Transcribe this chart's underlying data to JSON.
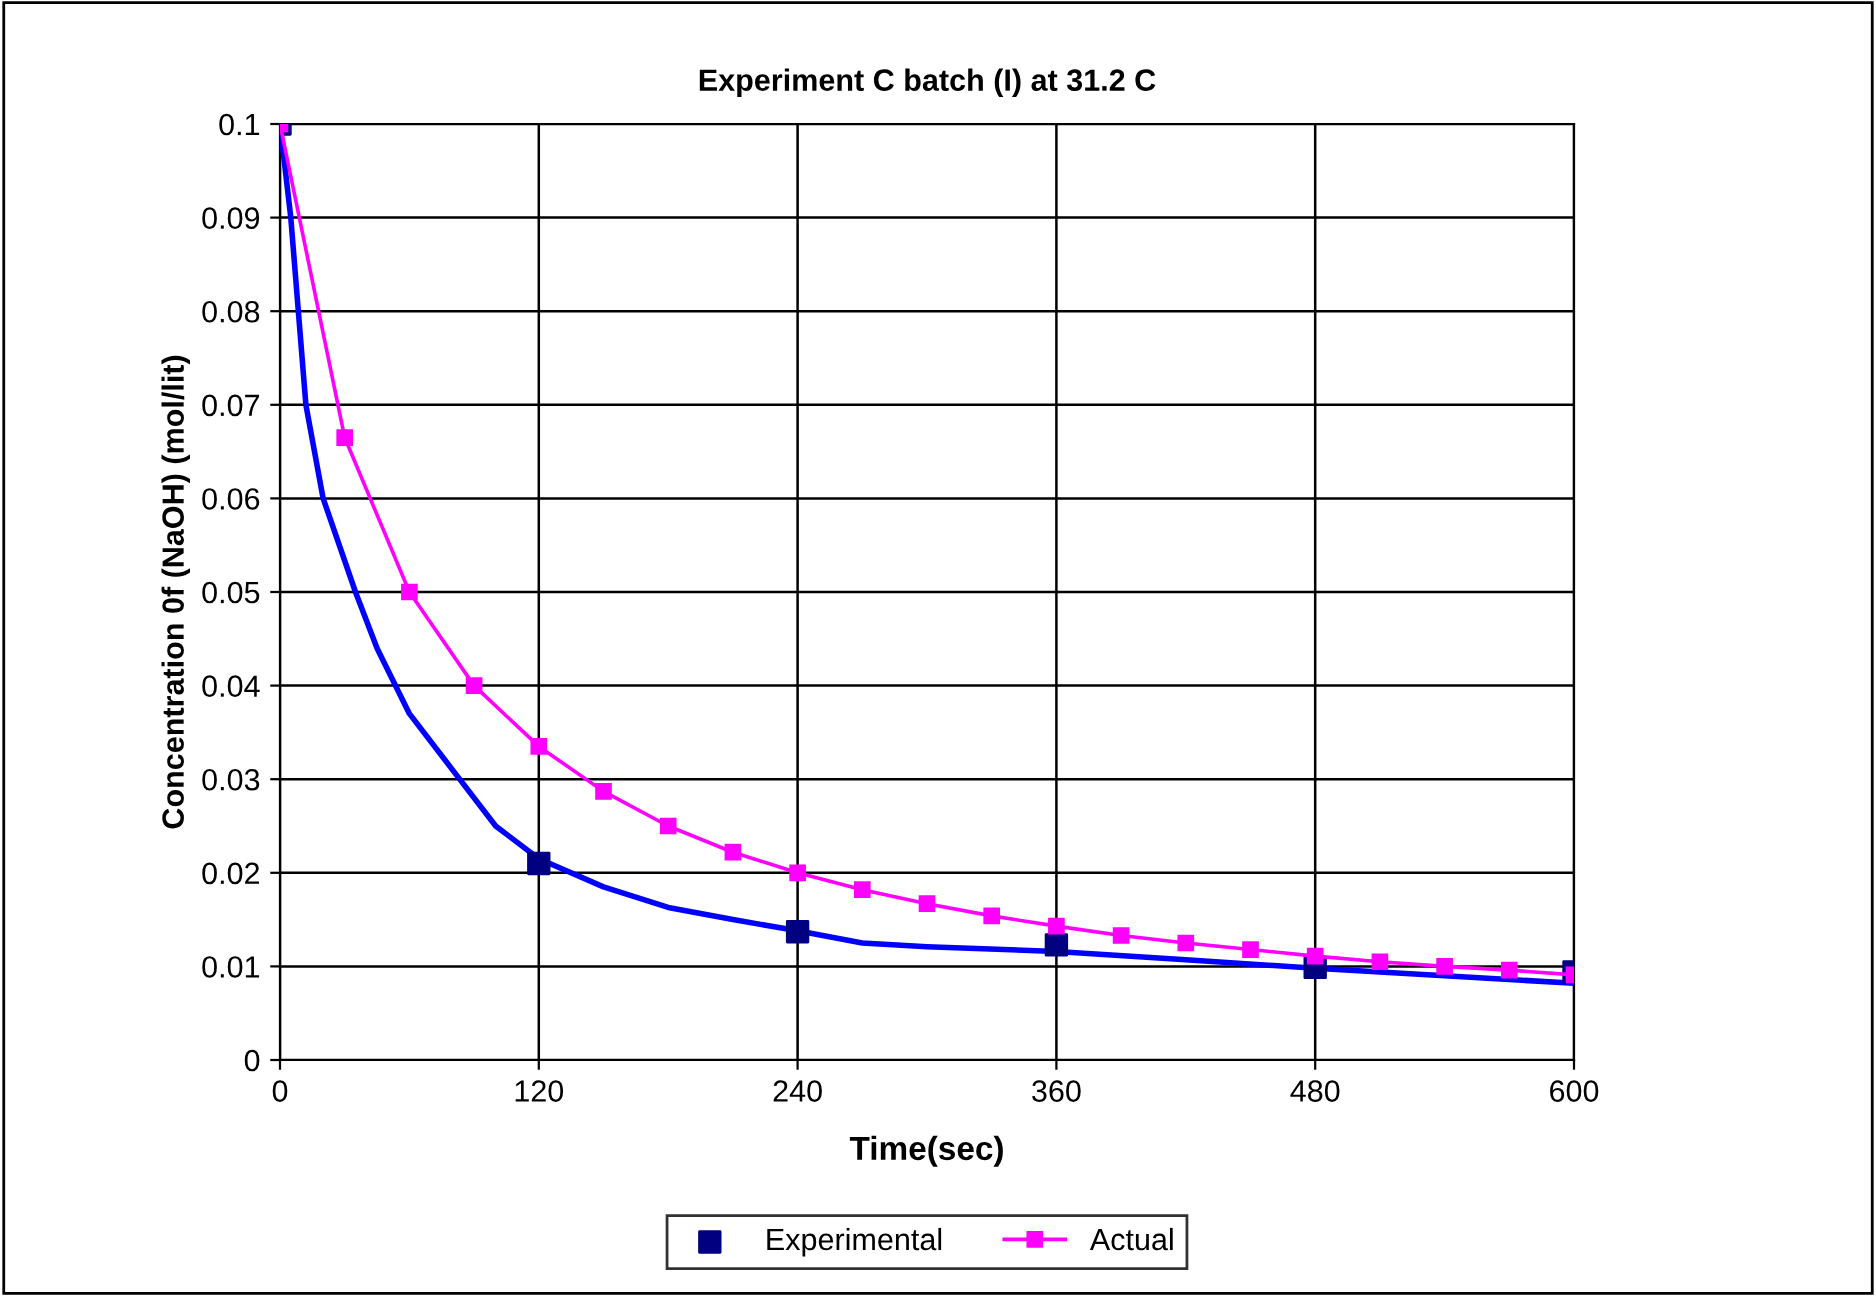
{
  "chart_data": {
    "type": "line",
    "title": "Experiment C batch (I) at 31.2 C",
    "xlabel": "Time(sec)",
    "ylabel": "Concentration 0f (NaOH) (mol/lit)",
    "xlim": [
      0,
      600
    ],
    "xticks": [
      0,
      120,
      240,
      360,
      480,
      600
    ],
    "ylim": [
      0,
      0.1
    ],
    "yticks": [
      0,
      0.01,
      0.02,
      0.03,
      0.04,
      0.05,
      0.06,
      0.07,
      0.08,
      0.09,
      0.1
    ],
    "grid": true,
    "legend": "bottom",
    "series": [
      {
        "name": "Experimental",
        "type": "scatter",
        "marker": "square",
        "color": "#000080",
        "x": [
          0,
          120,
          240,
          360,
          480,
          600
        ],
        "values": [
          0.1,
          0.021,
          0.0137,
          0.0123,
          0.0099,
          0.0094
        ]
      },
      {
        "name": "Actual",
        "marker": "square",
        "color": "#ff00ff",
        "x": [
          0,
          30,
          60,
          90,
          120,
          150,
          180,
          210,
          240,
          270,
          300,
          330,
          360,
          390,
          420,
          450,
          480,
          510,
          540,
          570,
          600
        ],
        "values": [
          0.1,
          0.0665,
          0.05,
          0.04,
          0.0335,
          0.0287,
          0.025,
          0.0222,
          0.02,
          0.0182,
          0.0167,
          0.0154,
          0.0143,
          0.0133,
          0.0125,
          0.0118,
          0.0111,
          0.0105,
          0.01,
          0.0096,
          0.0091
        ]
      },
      {
        "marker": "none",
        "color": "#0000ff",
        "x": [
          0,
          5,
          12,
          20,
          35,
          45,
          60,
          80,
          100,
          120,
          150,
          180,
          210,
          240,
          270,
          300,
          360,
          420,
          480,
          540,
          600
        ],
        "values": [
          0.1,
          0.09,
          0.07,
          0.06,
          0.05,
          0.044,
          0.037,
          0.031,
          0.025,
          0.0215,
          0.0185,
          0.0163,
          0.015,
          0.0138,
          0.0125,
          0.0121,
          0.0116,
          0.0107,
          0.0098,
          0.009,
          0.0082
        ]
      }
    ]
  }
}
